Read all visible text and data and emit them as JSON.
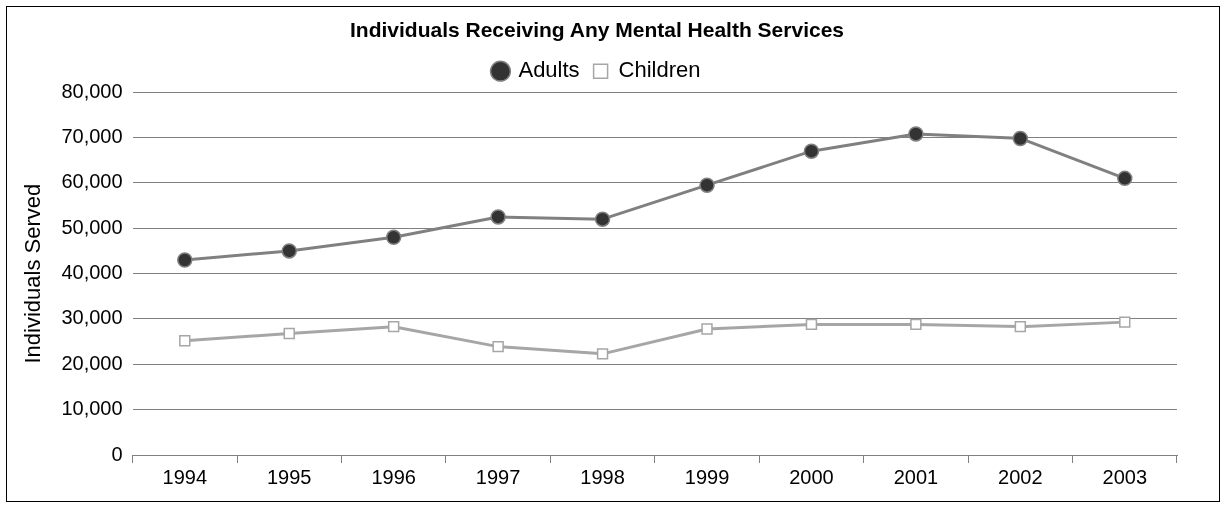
{
  "chart_data": {
    "type": "line",
    "title": "Individuals Receiving Any Mental Health Services",
    "ylabel": "Individuals Served",
    "categories": [
      "1994",
      "1995",
      "1996",
      "1997",
      "1998",
      "1999",
      "2000",
      "2001",
      "2002",
      "2003"
    ],
    "series": [
      {
        "name": "Adults",
        "color": "#808080",
        "marker": "circle",
        "values": [
          43000,
          45000,
          48000,
          52500,
          52000,
          59500,
          67000,
          70800,
          69800,
          61000
        ]
      },
      {
        "name": "Children",
        "color": "#a6a6a6",
        "marker": "square",
        "values": [
          25200,
          26800,
          28300,
          23900,
          22300,
          27800,
          28800,
          28800,
          28300,
          29300
        ]
      }
    ],
    "ylim": [
      0,
      80000
    ],
    "yticks": [
      0,
      {
        "value": 10000,
        "label": "10,000"
      },
      {
        "value": 20000,
        "label": "20,000"
      },
      {
        "value": 30000,
        "label": "30,000"
      },
      {
        "value": 40000,
        "label": "40,000"
      },
      {
        "value": 50000,
        "label": "50,000"
      },
      {
        "value": 60000,
        "label": "60,000"
      },
      {
        "value": 70000,
        "label": "70,000"
      },
      {
        "value": 80000,
        "label": "80,000"
      }
    ],
    "grid": "y",
    "legend": "top"
  }
}
